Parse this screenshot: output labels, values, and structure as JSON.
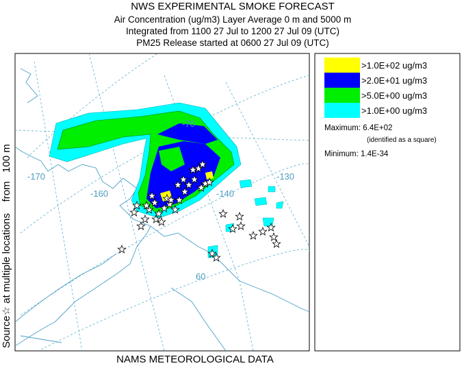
{
  "header": {
    "title": "NWS EXPERIMENTAL SMOKE FORECAST",
    "lines": [
      "Air Concentration (ug/m3) Layer Average    0 m and  5000 m",
      "Integrated from 1100 27 Jul to 1200 27 Jul 09 (UTC)",
      "PM25 Release started at 0600 27 Jul 09 (UTC)"
    ]
  },
  "side_label": "Source☆ at multiple locations    from   100 m",
  "footer": "NAMS METEOROLOGICAL DATA",
  "legend": {
    "entries": [
      {
        "label": ">1.0E+02 ug/m3",
        "color": "#ffff00"
      },
      {
        "label": ">2.0E+01 ug/m3",
        "color": "#0000ff"
      },
      {
        "label": ">5.0E+00 ug/m3",
        "color": "#00ee00"
      },
      {
        "label": ">1.0E+00 ug/m3",
        "color": "#00ffff"
      }
    ],
    "maximum": "Maximum: 6.4E+02",
    "maximum_note": "(identified as a square)",
    "minimum": "Minimum: 1.4E-34"
  },
  "map": {
    "labels": [
      "-170",
      "-160",
      "-140",
      "-130",
      "-70",
      "60"
    ]
  }
}
